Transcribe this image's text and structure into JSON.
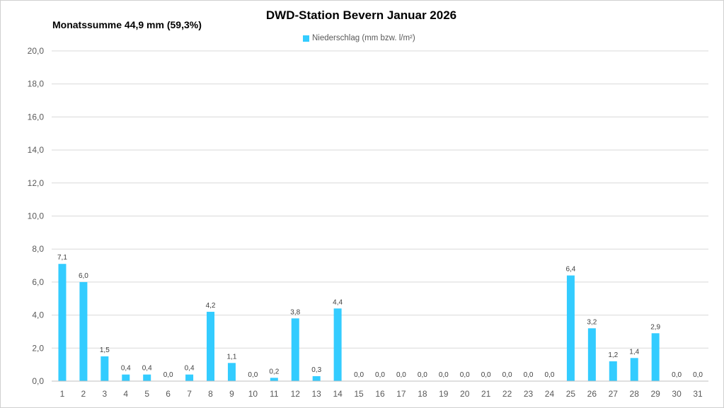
{
  "chart_data": {
    "type": "bar",
    "title": "DWD-Station Bevern Januar 2026",
    "subtitle": "Monatssumme 44,9 mm (59,3%)",
    "legend": {
      "position": "top",
      "entries": [
        "Niederschlag (mm bzw. l/m²)"
      ]
    },
    "series": [
      {
        "name": "Niederschlag (mm bzw. l/m²)",
        "color": "#33ccff",
        "values": [
          7.1,
          6.0,
          1.5,
          0.4,
          0.4,
          0.0,
          0.4,
          4.2,
          1.1,
          0.0,
          0.2,
          3.8,
          0.3,
          4.4,
          0.0,
          0.0,
          0.0,
          0.0,
          0.0,
          0.0,
          0.0,
          0.0,
          0.0,
          0.0,
          6.4,
          3.2,
          1.2,
          1.4,
          2.9,
          0.0,
          0.0
        ],
        "labels": [
          "7,1",
          "6,0",
          "1,5",
          "0,4",
          "0,4",
          "0,0",
          "0,4",
          "4,2",
          "1,1",
          "0,0",
          "0,2",
          "3,8",
          "0,3",
          "4,4",
          "0,0",
          "0,0",
          "0,0",
          "0,0",
          "0,0",
          "0,0",
          "0,0",
          "0,0",
          "0,0",
          "0,0",
          "6,4",
          "3,2",
          "1,2",
          "1,4",
          "2,9",
          "0,0",
          "0,0"
        ]
      }
    ],
    "categories": [
      "1",
      "2",
      "3",
      "4",
      "5",
      "6",
      "7",
      "8",
      "9",
      "10",
      "11",
      "12",
      "13",
      "14",
      "15",
      "16",
      "17",
      "18",
      "19",
      "20",
      "21",
      "22",
      "23",
      "24",
      "25",
      "26",
      "27",
      "28",
      "29",
      "30",
      "31"
    ],
    "ylim": [
      0,
      20
    ],
    "yticks": [
      0,
      2,
      4,
      6,
      8,
      10,
      12,
      14,
      16,
      18,
      20
    ],
    "ytick_labels": [
      "0,0",
      "2,0",
      "4,0",
      "6,0",
      "8,0",
      "10,0",
      "12,0",
      "14,0",
      "16,0",
      "18,0",
      "20,0"
    ],
    "grid": true,
    "xlabel": "",
    "ylabel": ""
  }
}
